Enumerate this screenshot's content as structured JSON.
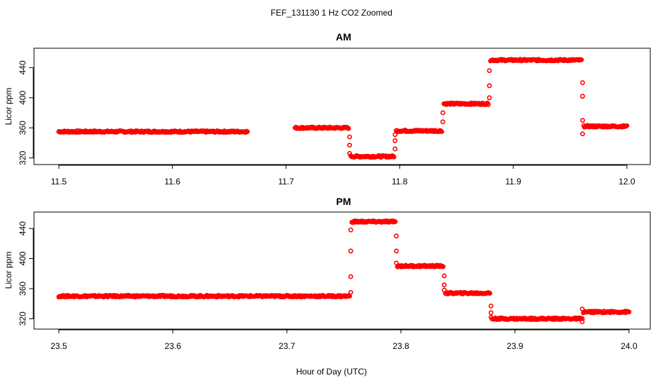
{
  "figure": {
    "suptitle": "FEF_131130  1 Hz CO2 Zoomed",
    "shared_xlabel": "Hour of Day (UTC)",
    "point_color": "#ff0000"
  },
  "chart_data": [
    {
      "type": "scatter",
      "title": "AM",
      "ylabel": "Licor ppm",
      "xlim": [
        11.5,
        12.0
      ],
      "ylim": [
        315,
        462
      ],
      "x_ticks": [
        "11.5",
        "11.6",
        "11.7",
        "11.8",
        "11.9",
        "12.0"
      ],
      "x_tick_values": [
        11.5,
        11.6,
        11.7,
        11.8,
        11.9,
        12.0
      ],
      "y_ticks": [
        "320",
        "360",
        "400",
        "440"
      ],
      "y_tick_values": [
        320,
        360,
        400,
        440
      ],
      "series": [
        {
          "segments": [
            {
              "x0": 11.5,
              "x1": 11.666,
              "y": 355
            },
            {
              "x0": 11.708,
              "x1": 11.755,
              "y": 360
            },
            {
              "x0": 11.757,
              "x1": 11.795,
              "y": 322
            },
            {
              "x0": 11.797,
              "x1": 11.837,
              "y": 356
            },
            {
              "x0": 11.839,
              "x1": 11.878,
              "y": 392
            },
            {
              "x0": 11.88,
              "x1": 11.96,
              "y": 450
            },
            {
              "x0": 11.962,
              "x1": 12.0,
              "y": 362
            }
          ],
          "transitions": [
            {
              "x": 11.756,
              "y": [
                348,
                337,
                326
              ]
            },
            {
              "x": 11.796,
              "y": [
                332,
                343,
                351
              ]
            },
            {
              "x": 11.838,
              "y": [
                368,
                380
              ]
            },
            {
              "x": 11.879,
              "y": [
                400,
                416,
                436
              ]
            },
            {
              "x": 11.961,
              "y": [
                420,
                402,
                370,
                352
              ]
            }
          ]
        }
      ]
    },
    {
      "type": "scatter",
      "title": "PM",
      "ylabel": "Licor ppm",
      "xlim": [
        23.5,
        24.0
      ],
      "ylim": [
        310,
        458
      ],
      "x_ticks": [
        "23.5",
        "23.6",
        "23.7",
        "23.8",
        "23.9",
        "24.0"
      ],
      "x_tick_values": [
        23.5,
        23.6,
        23.7,
        23.8,
        23.9,
        24.0
      ],
      "y_ticks": [
        "320",
        "360",
        "400",
        "440"
      ],
      "y_tick_values": [
        320,
        360,
        400,
        440
      ],
      "series": [
        {
          "segments": [
            {
              "x0": 23.5,
              "x1": 23.755,
              "y": 350
            },
            {
              "x0": 23.757,
              "x1": 23.795,
              "y": 449
            },
            {
              "x0": 23.797,
              "x1": 23.837,
              "y": 390
            },
            {
              "x0": 23.839,
              "x1": 23.878,
              "y": 354
            },
            {
              "x0": 23.88,
              "x1": 23.958,
              "y": 320
            },
            {
              "x0": 23.96,
              "x1": 24.0,
              "y": 329
            }
          ],
          "transitions": [
            {
              "x": 23.756,
              "y": [
                355,
                376,
                410,
                438
              ]
            },
            {
              "x": 23.796,
              "y": [
                430,
                410,
                394
              ]
            },
            {
              "x": 23.838,
              "y": [
                377,
                365,
                358
              ]
            },
            {
              "x": 23.879,
              "y": [
                337,
                328,
                322
              ]
            },
            {
              "x": 23.959,
              "y": [
                316,
                320,
                333
              ]
            }
          ]
        }
      ]
    }
  ]
}
